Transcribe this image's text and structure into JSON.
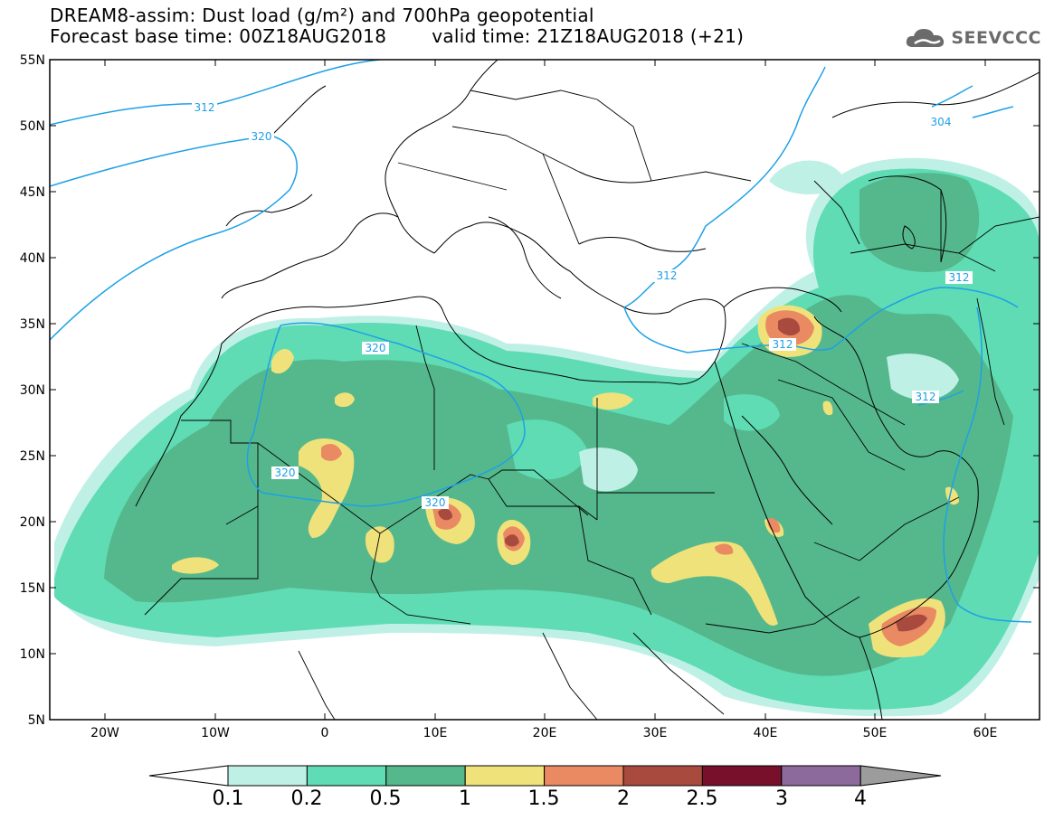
{
  "title": {
    "line1": "DREAM8-assim: Dust load (g/m²) and 700hPa geopotential",
    "line2_left": "Forecast base time: 00Z18AUG2018",
    "line2_right": "valid time: 21Z18AUG2018 (+21)"
  },
  "logo": {
    "text": "SEEVCCC",
    "icon": "cloud-icon"
  },
  "map": {
    "lat_ticks": [
      "55N",
      "50N",
      "45N",
      "40N",
      "35N",
      "30N",
      "25N",
      "20N",
      "15N",
      "10N",
      "5N"
    ],
    "lon_ticks": [
      "20W",
      "10W",
      "0",
      "10E",
      "20E",
      "30E",
      "40E",
      "50E",
      "60E"
    ],
    "contour_labels": [
      "312",
      "320",
      "320",
      "320",
      "320",
      "312",
      "312",
      "312",
      "312",
      "304"
    ]
  },
  "colorbar": {
    "labels": [
      "0.1",
      "0.2",
      "0.5",
      "1",
      "1.5",
      "2",
      "2.5",
      "3",
      "4"
    ],
    "colors": [
      "#bff0e6",
      "#5fdcb4",
      "#55b88c",
      "#f0e27a",
      "#e98a63",
      "#a94a3f",
      "#78102c",
      "#8c6a9c"
    ],
    "under_color": "#ffffff",
    "over_color": "#9c9c9c"
  },
  "colors": {
    "contour": "#1ea0e6",
    "border": "#000000"
  }
}
